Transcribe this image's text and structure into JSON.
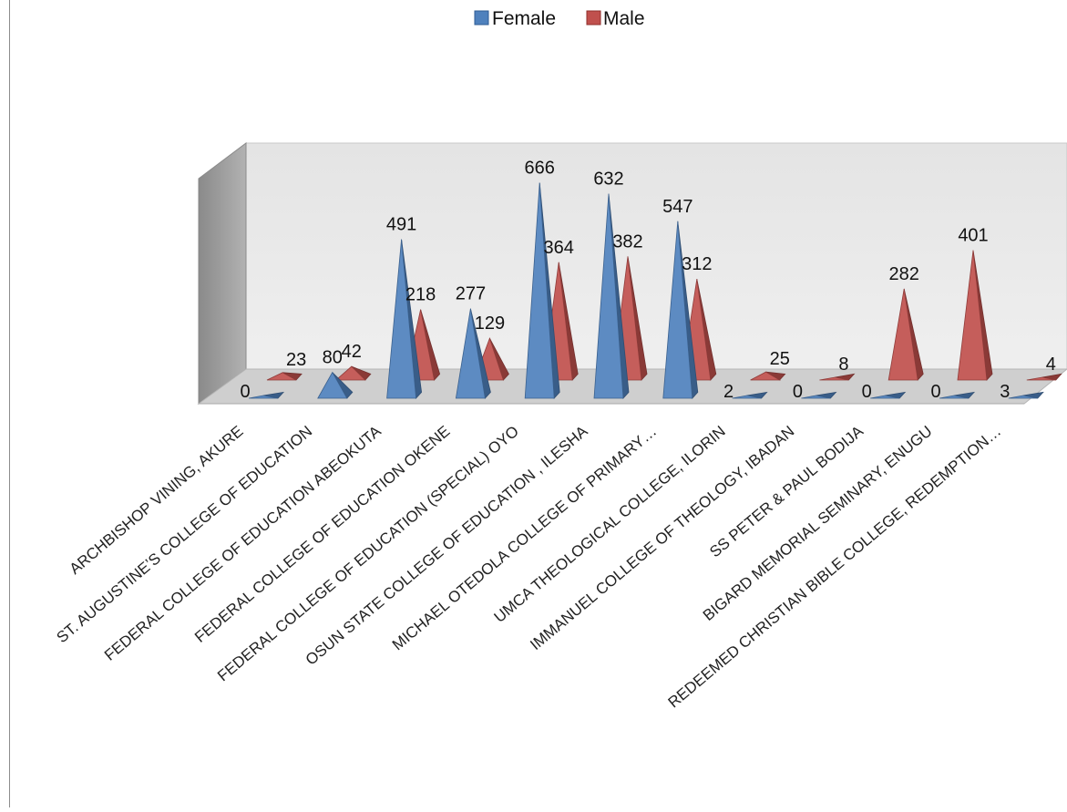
{
  "chart_data": {
    "type": "bar",
    "style": "3d-pyramid",
    "title": "",
    "xlabel": "",
    "ylabel": "",
    "ylim": [
      0,
      700
    ],
    "legend": {
      "position": "top-center"
    },
    "colors": {
      "Female": "#4f81bd",
      "Male": "#c0504d"
    },
    "categories": [
      "ARCHBISHOP VINING, AKURE",
      "ST. AUGUSTINE’S COLLEGE OF EDUCATION",
      "FEDERAL COLLEGE OF EDUCATION ABEOKUTA",
      "FEDERAL COLLEGE OF EDUCATION OKENE",
      "FEDERAL COLLEGE OF EDUCATION (SPECIAL) OYO",
      "OSUN STATE COLLEGE OF EDUCATION , ILESHA",
      "MICHAEL OTEDOLA COLLEGE OF PRIMARY…",
      "UMCA THEOLOGICAL COLLEGE, ILORIN",
      "IMMANUEL COLLEGE OF THEOLOGY, IBADAN",
      "SS PETER & PAUL BODIJA",
      "BIGARD MEMORIAL SEMINARY, ENUGU",
      "REDEEMED CHRISTIAN BIBLE COLLEGE, REDEMPTION…"
    ],
    "series": [
      {
        "name": "Female",
        "values": [
          0,
          80,
          491,
          277,
          666,
          632,
          547,
          2,
          0,
          0,
          0,
          3
        ]
      },
      {
        "name": "Male",
        "values": [
          23,
          42,
          218,
          129,
          364,
          382,
          312,
          25,
          8,
          282,
          401,
          4
        ]
      }
    ]
  }
}
